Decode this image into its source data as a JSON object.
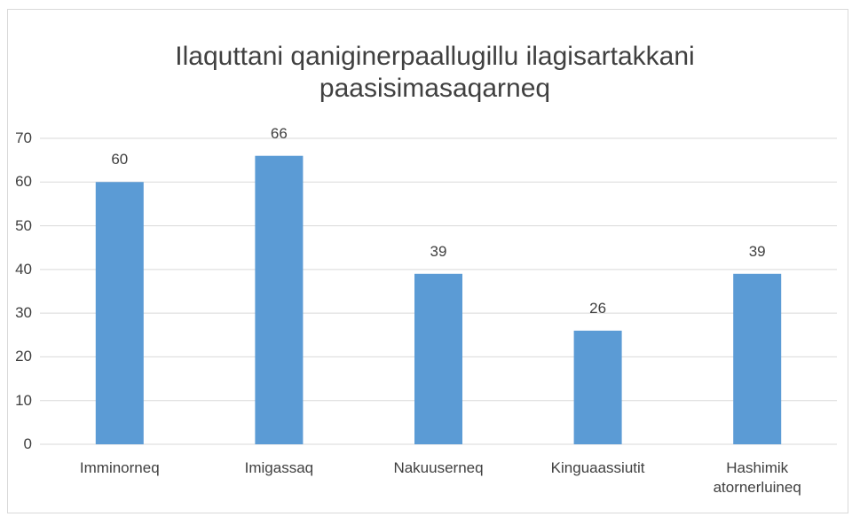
{
  "chart_data": {
    "type": "bar",
    "title": "Ilaquttani qaniginerpaallugillu ilagisartakkani paasisimasaqarneq",
    "categories": [
      "Imminorneq",
      "Imigassaq",
      "Nakuuserneq",
      "Kinguaassiutit",
      "Hashimik atornerluineq"
    ],
    "values": [
      60,
      66,
      39,
      26,
      39
    ],
    "color": "#5b9bd5",
    "ylim": [
      0,
      70
    ],
    "yticks": [
      0,
      10,
      20,
      30,
      40,
      50,
      60,
      70
    ],
    "grid": true
  }
}
